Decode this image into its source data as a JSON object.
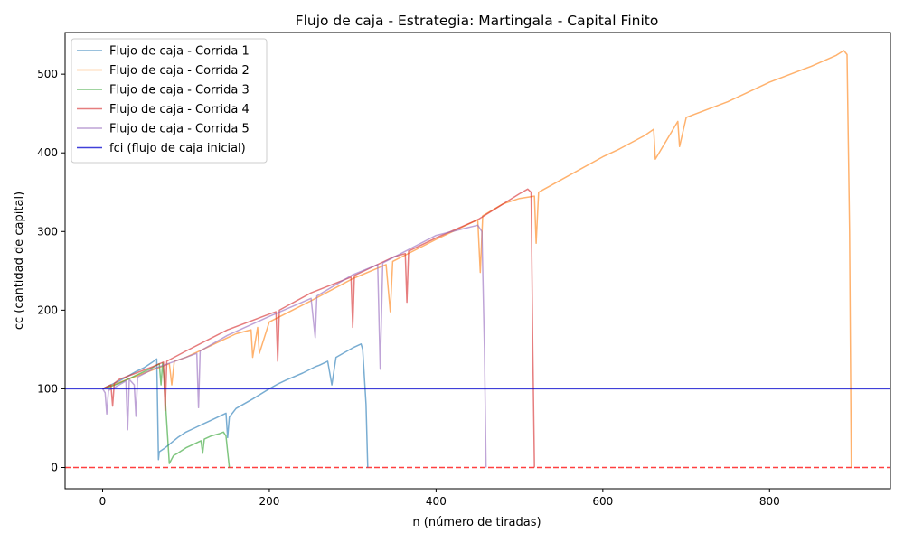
{
  "chart_data": {
    "type": "line",
    "title": "Flujo de caja - Estrategia: Martingala - Capital Finito",
    "xlabel": "n (número de tiradas)",
    "ylabel": "cc (cantidad de capital)",
    "xlim": [
      -45,
      945
    ],
    "ylim": [
      -27,
      553
    ],
    "xticks": [
      0,
      200,
      400,
      600,
      800
    ],
    "yticks": [
      0,
      100,
      200,
      300,
      400,
      500
    ],
    "grid": false,
    "legend_position": "top-left",
    "series": [
      {
        "name": "Flujo de caja - Corrida 1",
        "color": "#1f77b4",
        "x": [
          0,
          10,
          20,
          30,
          40,
          50,
          60,
          65,
          67,
          68,
          75,
          90,
          100,
          110,
          120,
          130,
          140,
          148,
          150,
          152,
          160,
          180,
          200,
          210,
          220,
          240,
          255,
          260,
          270,
          275,
          280,
          290,
          300,
          310,
          312,
          316,
          318
        ],
        "y": [
          100,
          105,
          110,
          116,
          122,
          127,
          134,
          138,
          10,
          20,
          25,
          38,
          45,
          50,
          55,
          60,
          65,
          69,
          38,
          64,
          75,
          87,
          100,
          106,
          111,
          120,
          128,
          130,
          135,
          105,
          140,
          146,
          152,
          157,
          150,
          80,
          0
        ]
      },
      {
        "name": "Flujo de caja - Corrida 2",
        "color": "#ff7f0e",
        "x": [
          0,
          20,
          50,
          70,
          80,
          83,
          86,
          100,
          120,
          140,
          160,
          178,
          180,
          186,
          188,
          200,
          250,
          300,
          340,
          345,
          348,
          400,
          440,
          450,
          453,
          456,
          480,
          500,
          518,
          520,
          523,
          600,
          620,
          650,
          661,
          663,
          690,
          692,
          700,
          750,
          800,
          850,
          880,
          889,
          893,
          896,
          898
        ],
        "y": [
          100,
          108,
          120,
          128,
          132,
          105,
          135,
          140,
          150,
          160,
          170,
          175,
          140,
          178,
          145,
          185,
          212,
          240,
          258,
          198,
          262,
          290,
          310,
          315,
          248,
          320,
          335,
          342,
          345,
          285,
          350,
          395,
          405,
          422,
          430,
          392,
          440,
          408,
          445,
          465,
          490,
          510,
          524,
          530,
          525,
          300,
          0
        ]
      },
      {
        "name": "Flujo de caja - Corrida 3",
        "color": "#2ca02c",
        "x": [
          0,
          10,
          20,
          30,
          40,
          50,
          60,
          68,
          70,
          72,
          74,
          76,
          80,
          85,
          90,
          100,
          110,
          118,
          120,
          122,
          130,
          140,
          145,
          148,
          150,
          152
        ],
        "y": [
          100,
          103,
          107,
          112,
          117,
          122,
          127,
          132,
          105,
          133,
          110,
          72,
          5,
          15,
          18,
          25,
          30,
          34,
          18,
          36,
          40,
          43,
          45,
          40,
          20,
          0
        ]
      },
      {
        "name": "Flujo de caja - Corrida 4",
        "color": "#d62728",
        "x": [
          0,
          10,
          12,
          14,
          20,
          40,
          60,
          73,
          75,
          77,
          100,
          150,
          200,
          208,
          210,
          212,
          250,
          298,
          300,
          302,
          350,
          363,
          365,
          367,
          400,
          450,
          500,
          510,
          514,
          516,
          518
        ],
        "y": [
          100,
          105,
          78,
          107,
          112,
          120,
          128,
          134,
          72,
          135,
          148,
          175,
          195,
          198,
          135,
          200,
          222,
          242,
          178,
          244,
          268,
          272,
          210,
          275,
          292,
          315,
          348,
          354,
          350,
          150,
          0
        ]
      },
      {
        "name": "Flujo de caja - Corrida 5",
        "color": "#9467bd",
        "x": [
          0,
          3,
          5,
          7,
          15,
          28,
          30,
          32,
          38,
          40,
          42,
          60,
          100,
          113,
          115,
          117,
          150,
          200,
          250,
          255,
          257,
          300,
          330,
          333,
          336,
          400,
          450,
          455,
          458,
          460
        ],
        "y": [
          100,
          95,
          68,
          98,
          102,
          110,
          48,
          112,
          105,
          65,
          115,
          125,
          140,
          145,
          76,
          148,
          168,
          192,
          215,
          165,
          218,
          245,
          258,
          125,
          260,
          295,
          308,
          300,
          150,
          0
        ]
      },
      {
        "name": "fci (flujo de caja inicial)",
        "color": "#0000cc",
        "x": [
          -45,
          945
        ],
        "y": [
          100,
          100
        ]
      }
    ],
    "reference_lines": [
      {
        "y": 0,
        "color": "#ff0000",
        "style": "dashed"
      }
    ]
  }
}
